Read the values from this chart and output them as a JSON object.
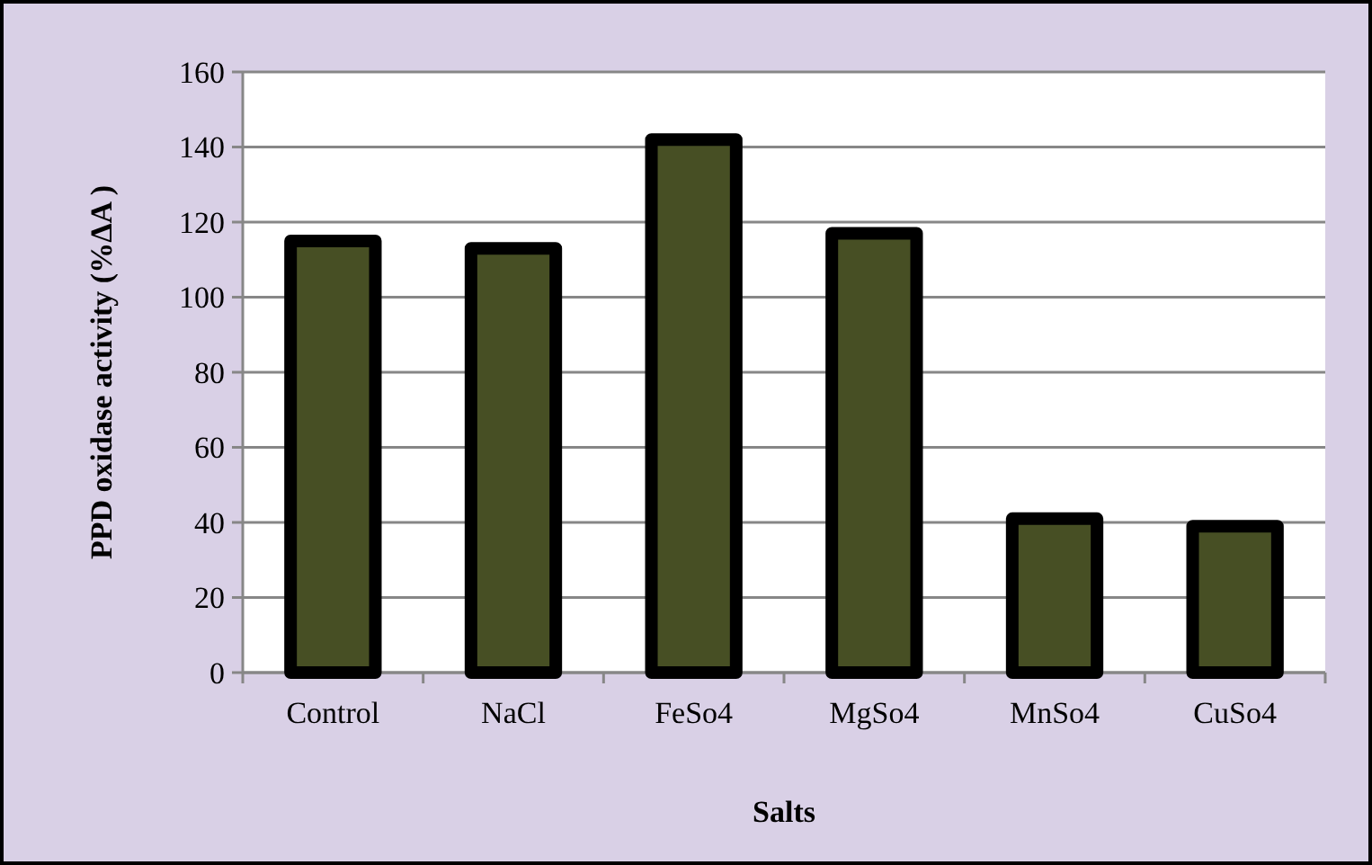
{
  "chart_data": {
    "type": "bar",
    "xlabel": "Salts",
    "ylabel": "PPD oxidase activity (%ΔA )",
    "categories": [
      "Control",
      "NaCl",
      "FeSo4",
      "MgSo4",
      "MnSo4",
      "CuSo4"
    ],
    "values": [
      115,
      113,
      142,
      117,
      41,
      39
    ],
    "color": "#474f24",
    "ylim": [
      0,
      160
    ],
    "yticks": [
      0,
      20,
      40,
      60,
      80,
      100,
      120,
      140,
      160
    ],
    "grid": "y"
  }
}
